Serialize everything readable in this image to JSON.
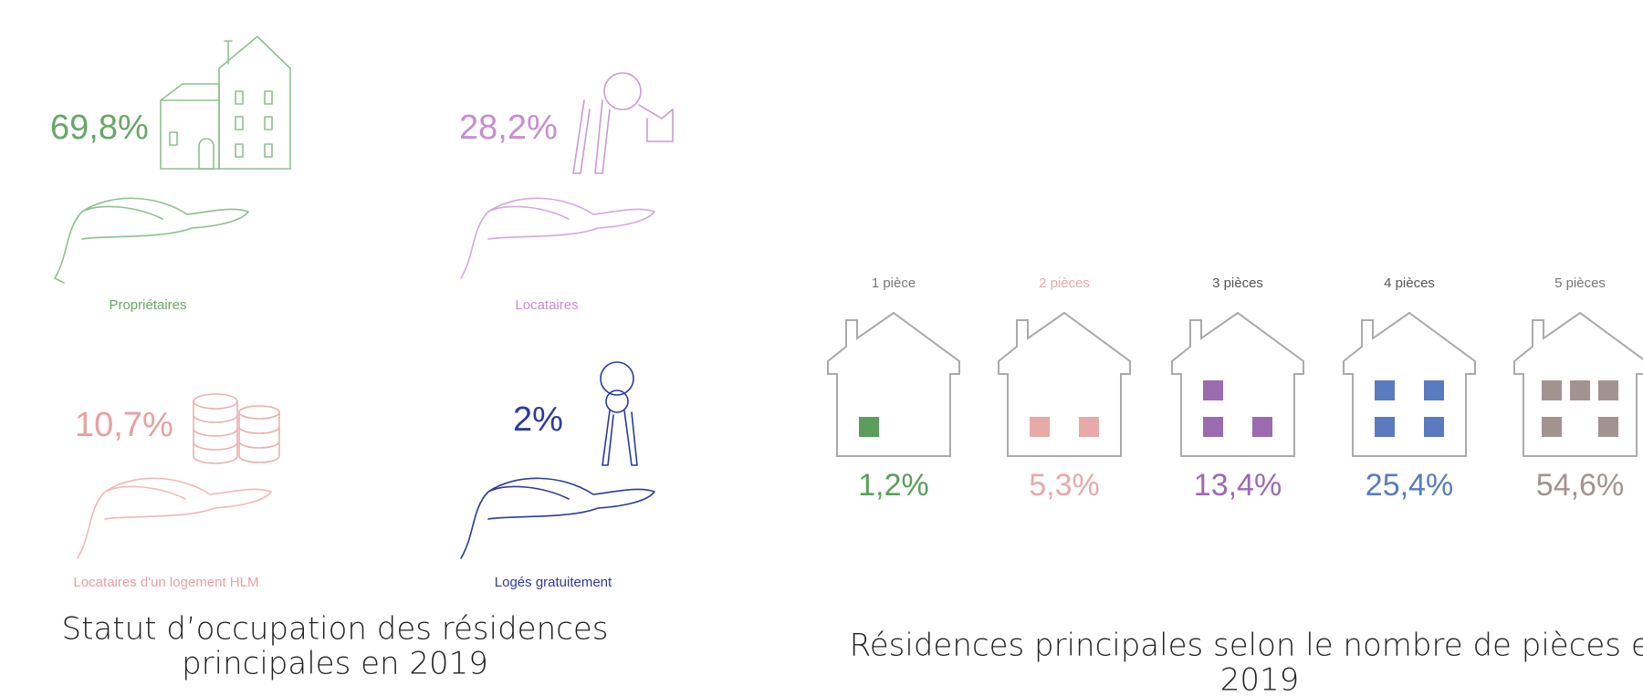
{
  "left": {
    "items": [
      {
        "value": "69,8%",
        "label": "Propriétaires"
      },
      {
        "value": "28,2%",
        "label": "Locataires"
      },
      {
        "value": "10,7%",
        "label": "Locataires d'un logement HLM"
      },
      {
        "value": "2%",
        "label": "Logés gratuitement"
      }
    ],
    "title": [
      "Statut d’occupation des résidences",
      "principales en 2019"
    ]
  },
  "right": {
    "houses": [
      {
        "label": "1 pièce",
        "value": "1,2%"
      },
      {
        "label": "2 pièces",
        "value": "5,3%"
      },
      {
        "label": "3 pièces",
        "value": "13,4%"
      },
      {
        "label": "4 pièces",
        "value": "25,4%"
      },
      {
        "label": "5 pièces",
        "value": "54,6%"
      }
    ],
    "title": [
      "Résidences principales selon le nombre de pièces en",
      "2019"
    ]
  }
}
